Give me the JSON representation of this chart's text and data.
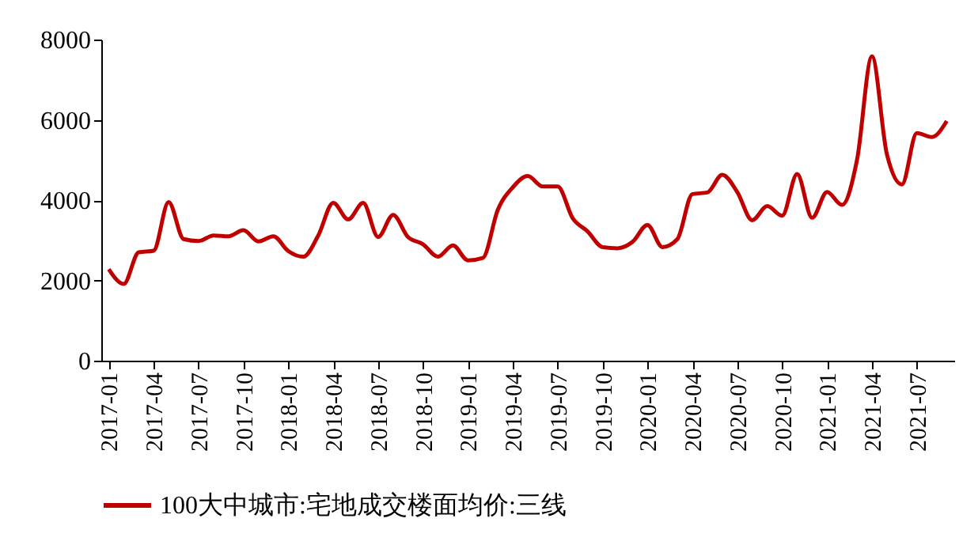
{
  "chart_data": {
    "type": "line",
    "categories": [
      "2017-01",
      null,
      null,
      "2017-04",
      null,
      null,
      "2017-07",
      null,
      null,
      "2017-10",
      null,
      null,
      "2018-01",
      null,
      null,
      "2018-04",
      null,
      null,
      "2018-07",
      null,
      null,
      "2018-10",
      null,
      null,
      "2019-01",
      null,
      null,
      "2019-04",
      null,
      null,
      "2019-07",
      null,
      null,
      "2019-10",
      null,
      null,
      "2020-01",
      null,
      null,
      "2020-04",
      null,
      null,
      "2020-07",
      null,
      null,
      "2020-10",
      null,
      null,
      "2021-01",
      null,
      null,
      "2021-04",
      null,
      null,
      "2021-07",
      null,
      null
    ],
    "series": [
      {
        "name": "100大中城市:宅地成交楼面均价:三线",
        "color": "#c00000",
        "values": [
          2280,
          1910,
          2700,
          2740,
          3950,
          3030,
          2980,
          3120,
          3100,
          3250,
          2970,
          3100,
          2730,
          2590,
          3120,
          3930,
          3520,
          3930,
          3080,
          3630,
          3080,
          2900,
          2590,
          2870,
          2500,
          2560,
          3760,
          4320,
          4600,
          4340,
          4340,
          3550,
          3220,
          2830,
          2800,
          2960,
          3380,
          2830,
          3030,
          4150,
          4190,
          4630,
          4200,
          3500,
          3850,
          3610,
          4650,
          3560,
          4200,
          3880,
          5000,
          7580,
          5140,
          4390,
          5670,
          5570,
          5970
        ]
      }
    ],
    "ylim": [
      0,
      8000
    ],
    "yticks": [
      0,
      2000,
      4000,
      6000,
      8000
    ],
    "grid": false,
    "legend": "bottom",
    "marker": "none",
    "line_style": "solid"
  }
}
